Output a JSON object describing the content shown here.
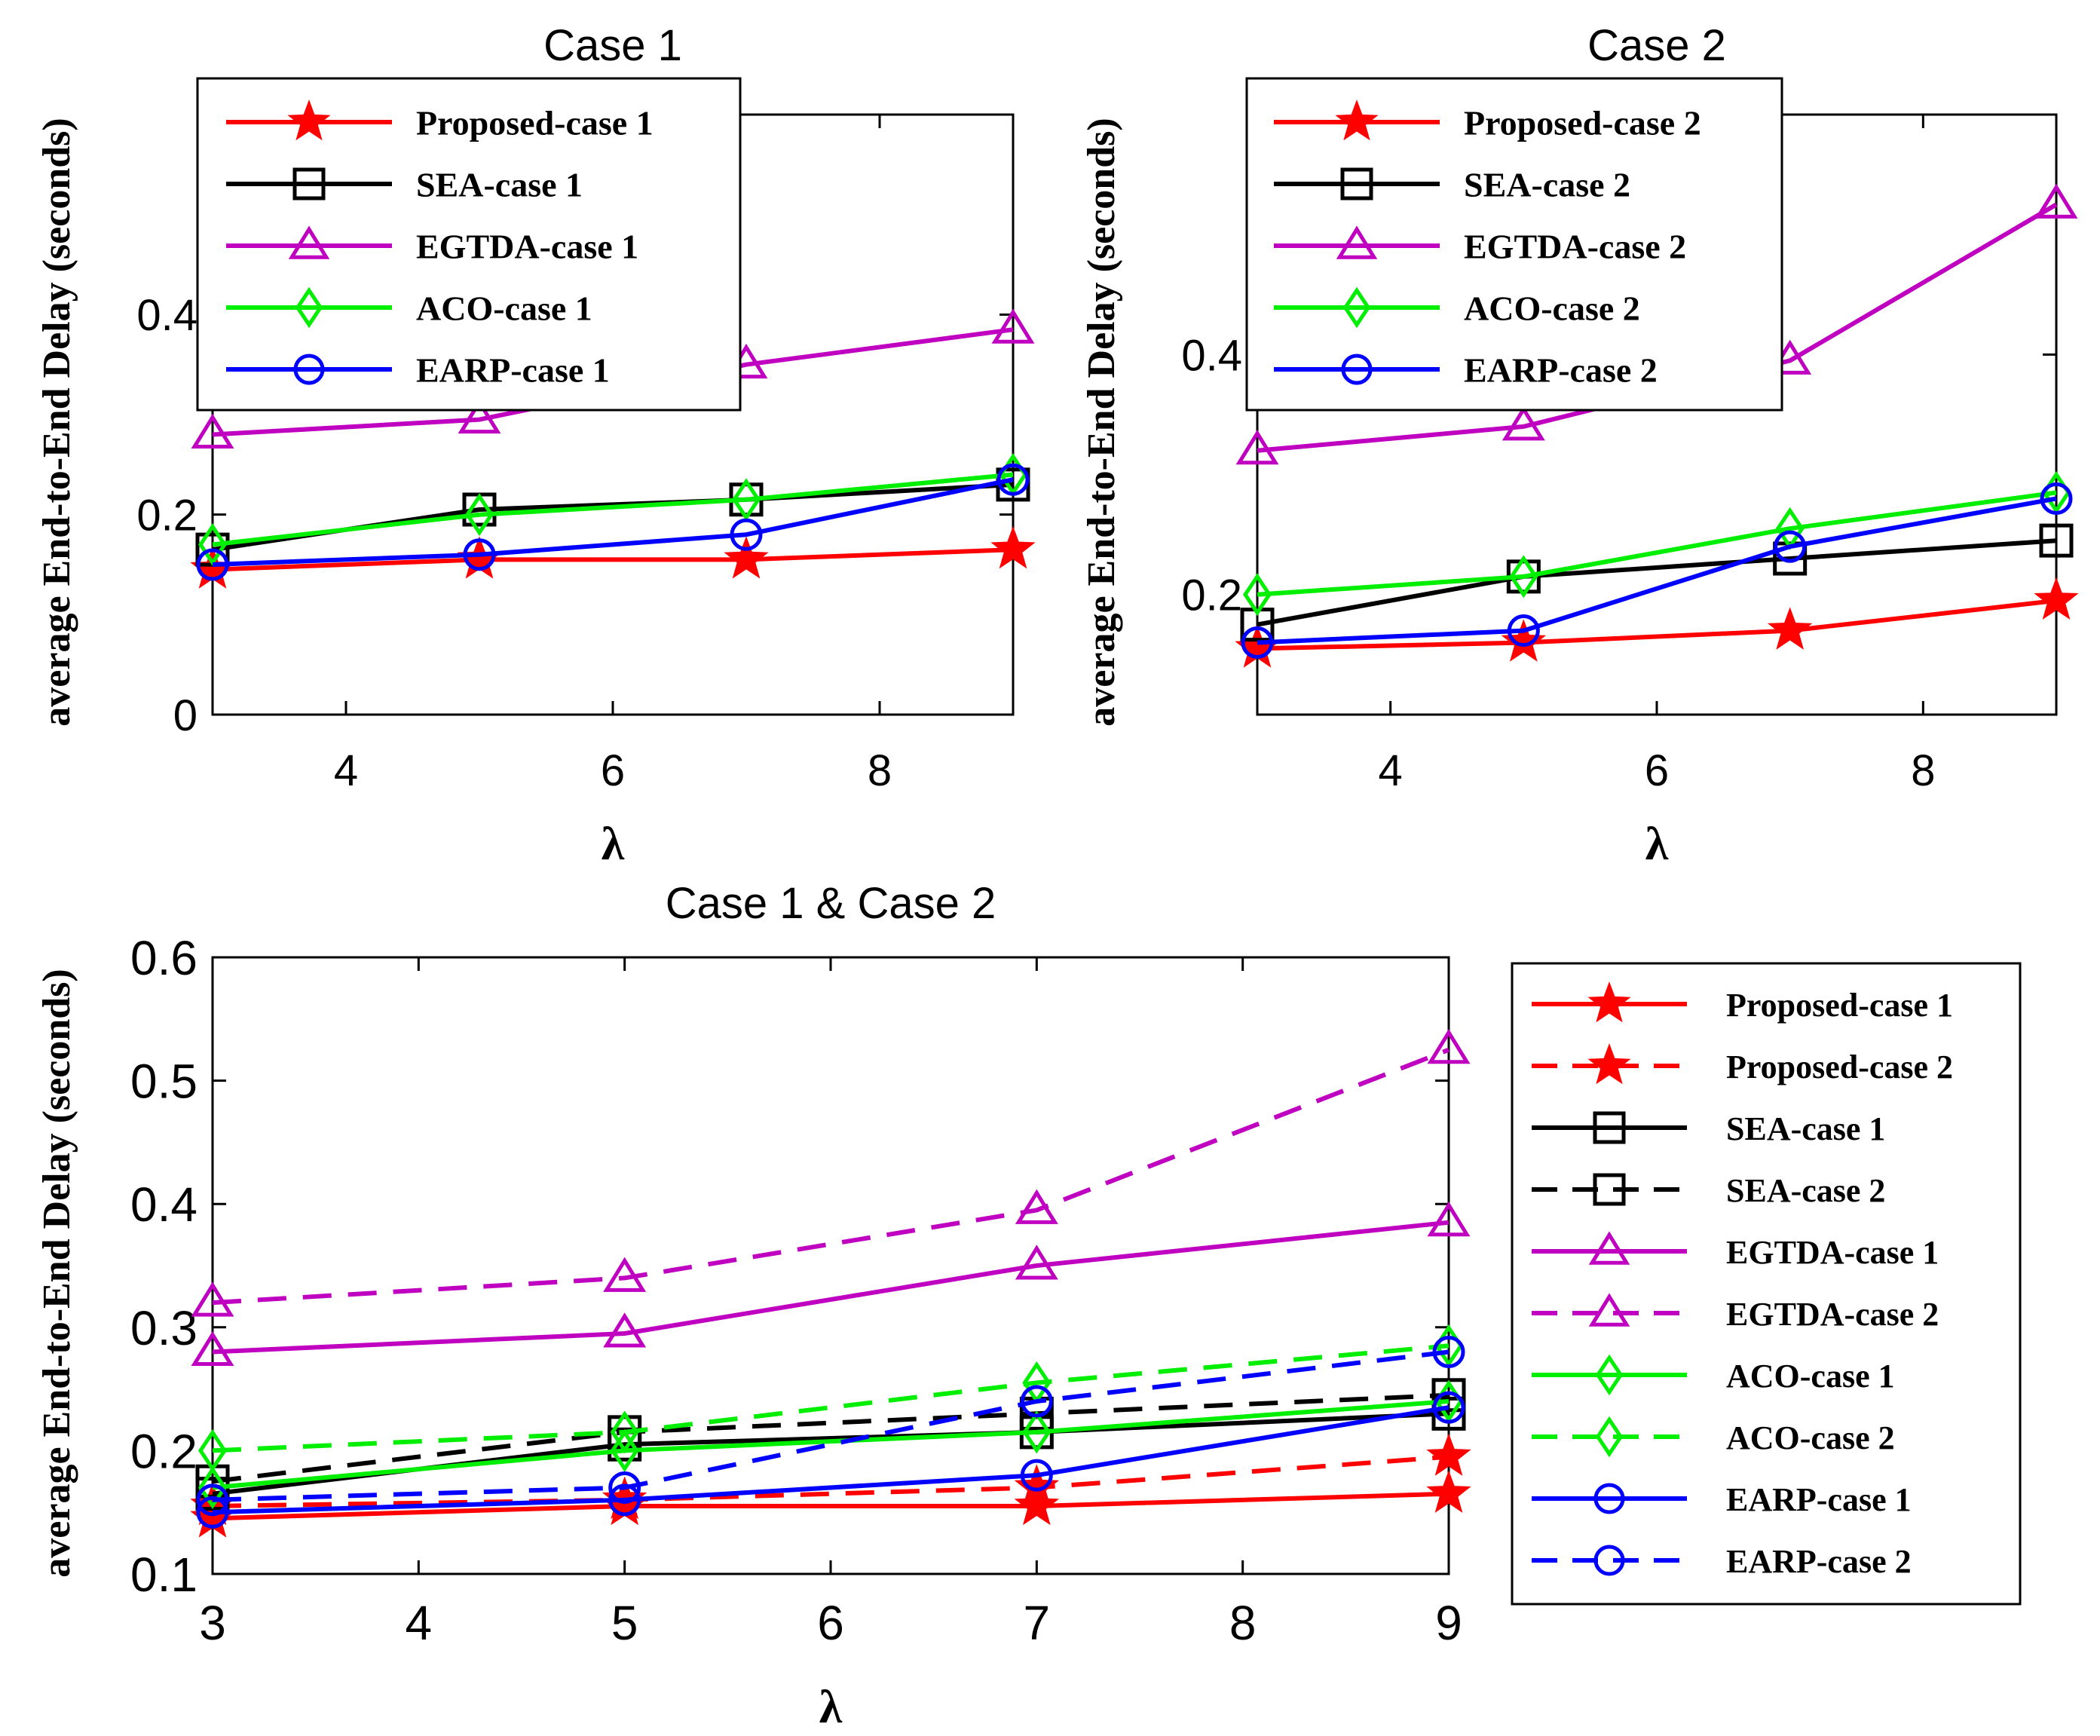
{
  "figure": {
    "ylabel": "average End-to-End Delay (seconds)",
    "xlabel": "λ"
  },
  "styles": {
    "Proposed": {
      "color": "#ff0000",
      "marker": "star"
    },
    "SEA": {
      "color": "#000000",
      "marker": "square"
    },
    "EGTDA": {
      "color": "#c000c0",
      "marker": "triangle"
    },
    "ACO": {
      "color": "#00ee00",
      "marker": "diamond"
    },
    "EARP": {
      "color": "#0000ff",
      "marker": "circle"
    }
  },
  "chart_data": [
    {
      "id": "case1",
      "type": "line",
      "title": "Case 1",
      "xlabel": "λ",
      "ylabel": "average End-to-End Delay (seconds)",
      "xlim": [
        3,
        9
      ],
      "ylim": [
        0,
        0.6
      ],
      "xticks": [
        4,
        6,
        8
      ],
      "yticks": [
        0,
        0.2,
        0.4
      ],
      "ytick_labels": [
        "0",
        "0.2",
        "0.4"
      ],
      "legend_position": "top-left",
      "x": [
        3,
        5,
        7,
        9
      ],
      "series": [
        {
          "name": "Proposed-case 1",
          "family": "Proposed",
          "dashed": false,
          "values": [
            0.145,
            0.155,
            0.155,
            0.165
          ]
        },
        {
          "name": "SEA-case 1",
          "family": "SEA",
          "dashed": false,
          "values": [
            0.165,
            0.205,
            0.215,
            0.23
          ]
        },
        {
          "name": "EGTDA-case 1",
          "family": "EGTDA",
          "dashed": false,
          "values": [
            0.28,
            0.295,
            0.35,
            0.385
          ]
        },
        {
          "name": "ACO-case 1",
          "family": "ACO",
          "dashed": false,
          "values": [
            0.17,
            0.2,
            0.215,
            0.24
          ]
        },
        {
          "name": "EARP-case 1",
          "family": "EARP",
          "dashed": false,
          "values": [
            0.15,
            0.16,
            0.18,
            0.235
          ]
        }
      ]
    },
    {
      "id": "case2",
      "type": "line",
      "title": "Case 2",
      "xlabel": "λ",
      "ylabel": "average End-to-End Delay (seconds)",
      "xlim": [
        3,
        9
      ],
      "ylim": [
        0.1,
        0.6
      ],
      "xticks": [
        4,
        6,
        8
      ],
      "yticks": [
        0.2,
        0.4
      ],
      "ytick_labels": [
        "0.2",
        "0.4"
      ],
      "legend_position": "top-left",
      "x": [
        3,
        5,
        7,
        9
      ],
      "series": [
        {
          "name": "Proposed-case 2",
          "family": "Proposed",
          "dashed": false,
          "values": [
            0.155,
            0.16,
            0.17,
            0.195
          ]
        },
        {
          "name": "SEA-case 2",
          "family": "SEA",
          "dashed": false,
          "values": [
            0.175,
            0.215,
            0.23,
            0.245
          ]
        },
        {
          "name": "EGTDA-case 2",
          "family": "EGTDA",
          "dashed": false,
          "values": [
            0.32,
            0.34,
            0.395,
            0.525
          ]
        },
        {
          "name": "ACO-case 2",
          "family": "ACO",
          "dashed": false,
          "values": [
            0.2,
            0.215,
            0.255,
            0.285
          ]
        },
        {
          "name": "EARP-case 2",
          "family": "EARP",
          "dashed": false,
          "values": [
            0.16,
            0.17,
            0.24,
            0.28
          ]
        }
      ]
    },
    {
      "id": "combined",
      "type": "line",
      "title": "Case 1 & Case 2",
      "xlabel": "λ",
      "ylabel": "average End-to-End Delay (seconds)",
      "xlim": [
        3,
        9
      ],
      "ylim": [
        0.1,
        0.6
      ],
      "xticks": [
        3,
        4,
        5,
        6,
        7,
        8,
        9
      ],
      "yticks": [
        0.1,
        0.2,
        0.3,
        0.4,
        0.5,
        0.6
      ],
      "ytick_labels": [
        "0.1",
        "0.2",
        "0.3",
        "0.4",
        "0.5",
        "0.6"
      ],
      "legend_position": "outside-right",
      "x": [
        3,
        5,
        7,
        9
      ],
      "series": [
        {
          "name": "Proposed-case 1",
          "family": "Proposed",
          "dashed": false,
          "values": [
            0.145,
            0.155,
            0.155,
            0.165
          ]
        },
        {
          "name": "Proposed-case 2",
          "family": "Proposed",
          "dashed": true,
          "values": [
            0.155,
            0.16,
            0.17,
            0.195
          ]
        },
        {
          "name": "SEA-case 1",
          "family": "SEA",
          "dashed": false,
          "values": [
            0.165,
            0.205,
            0.215,
            0.23
          ]
        },
        {
          "name": "SEA-case 2",
          "family": "SEA",
          "dashed": true,
          "values": [
            0.175,
            0.215,
            0.23,
            0.245
          ]
        },
        {
          "name": "EGTDA-case 1",
          "family": "EGTDA",
          "dashed": false,
          "values": [
            0.28,
            0.295,
            0.35,
            0.385
          ]
        },
        {
          "name": "EGTDA-case 2",
          "family": "EGTDA",
          "dashed": true,
          "values": [
            0.32,
            0.34,
            0.395,
            0.525
          ]
        },
        {
          "name": "ACO-case 1",
          "family": "ACO",
          "dashed": false,
          "values": [
            0.17,
            0.2,
            0.215,
            0.24
          ]
        },
        {
          "name": "ACO-case 2",
          "family": "ACO",
          "dashed": true,
          "values": [
            0.2,
            0.215,
            0.255,
            0.285
          ]
        },
        {
          "name": "EARP-case 1",
          "family": "EARP",
          "dashed": false,
          "values": [
            0.15,
            0.16,
            0.18,
            0.235
          ]
        },
        {
          "name": "EARP-case 2",
          "family": "EARP",
          "dashed": true,
          "values": [
            0.16,
            0.17,
            0.24,
            0.28
          ]
        }
      ]
    }
  ]
}
